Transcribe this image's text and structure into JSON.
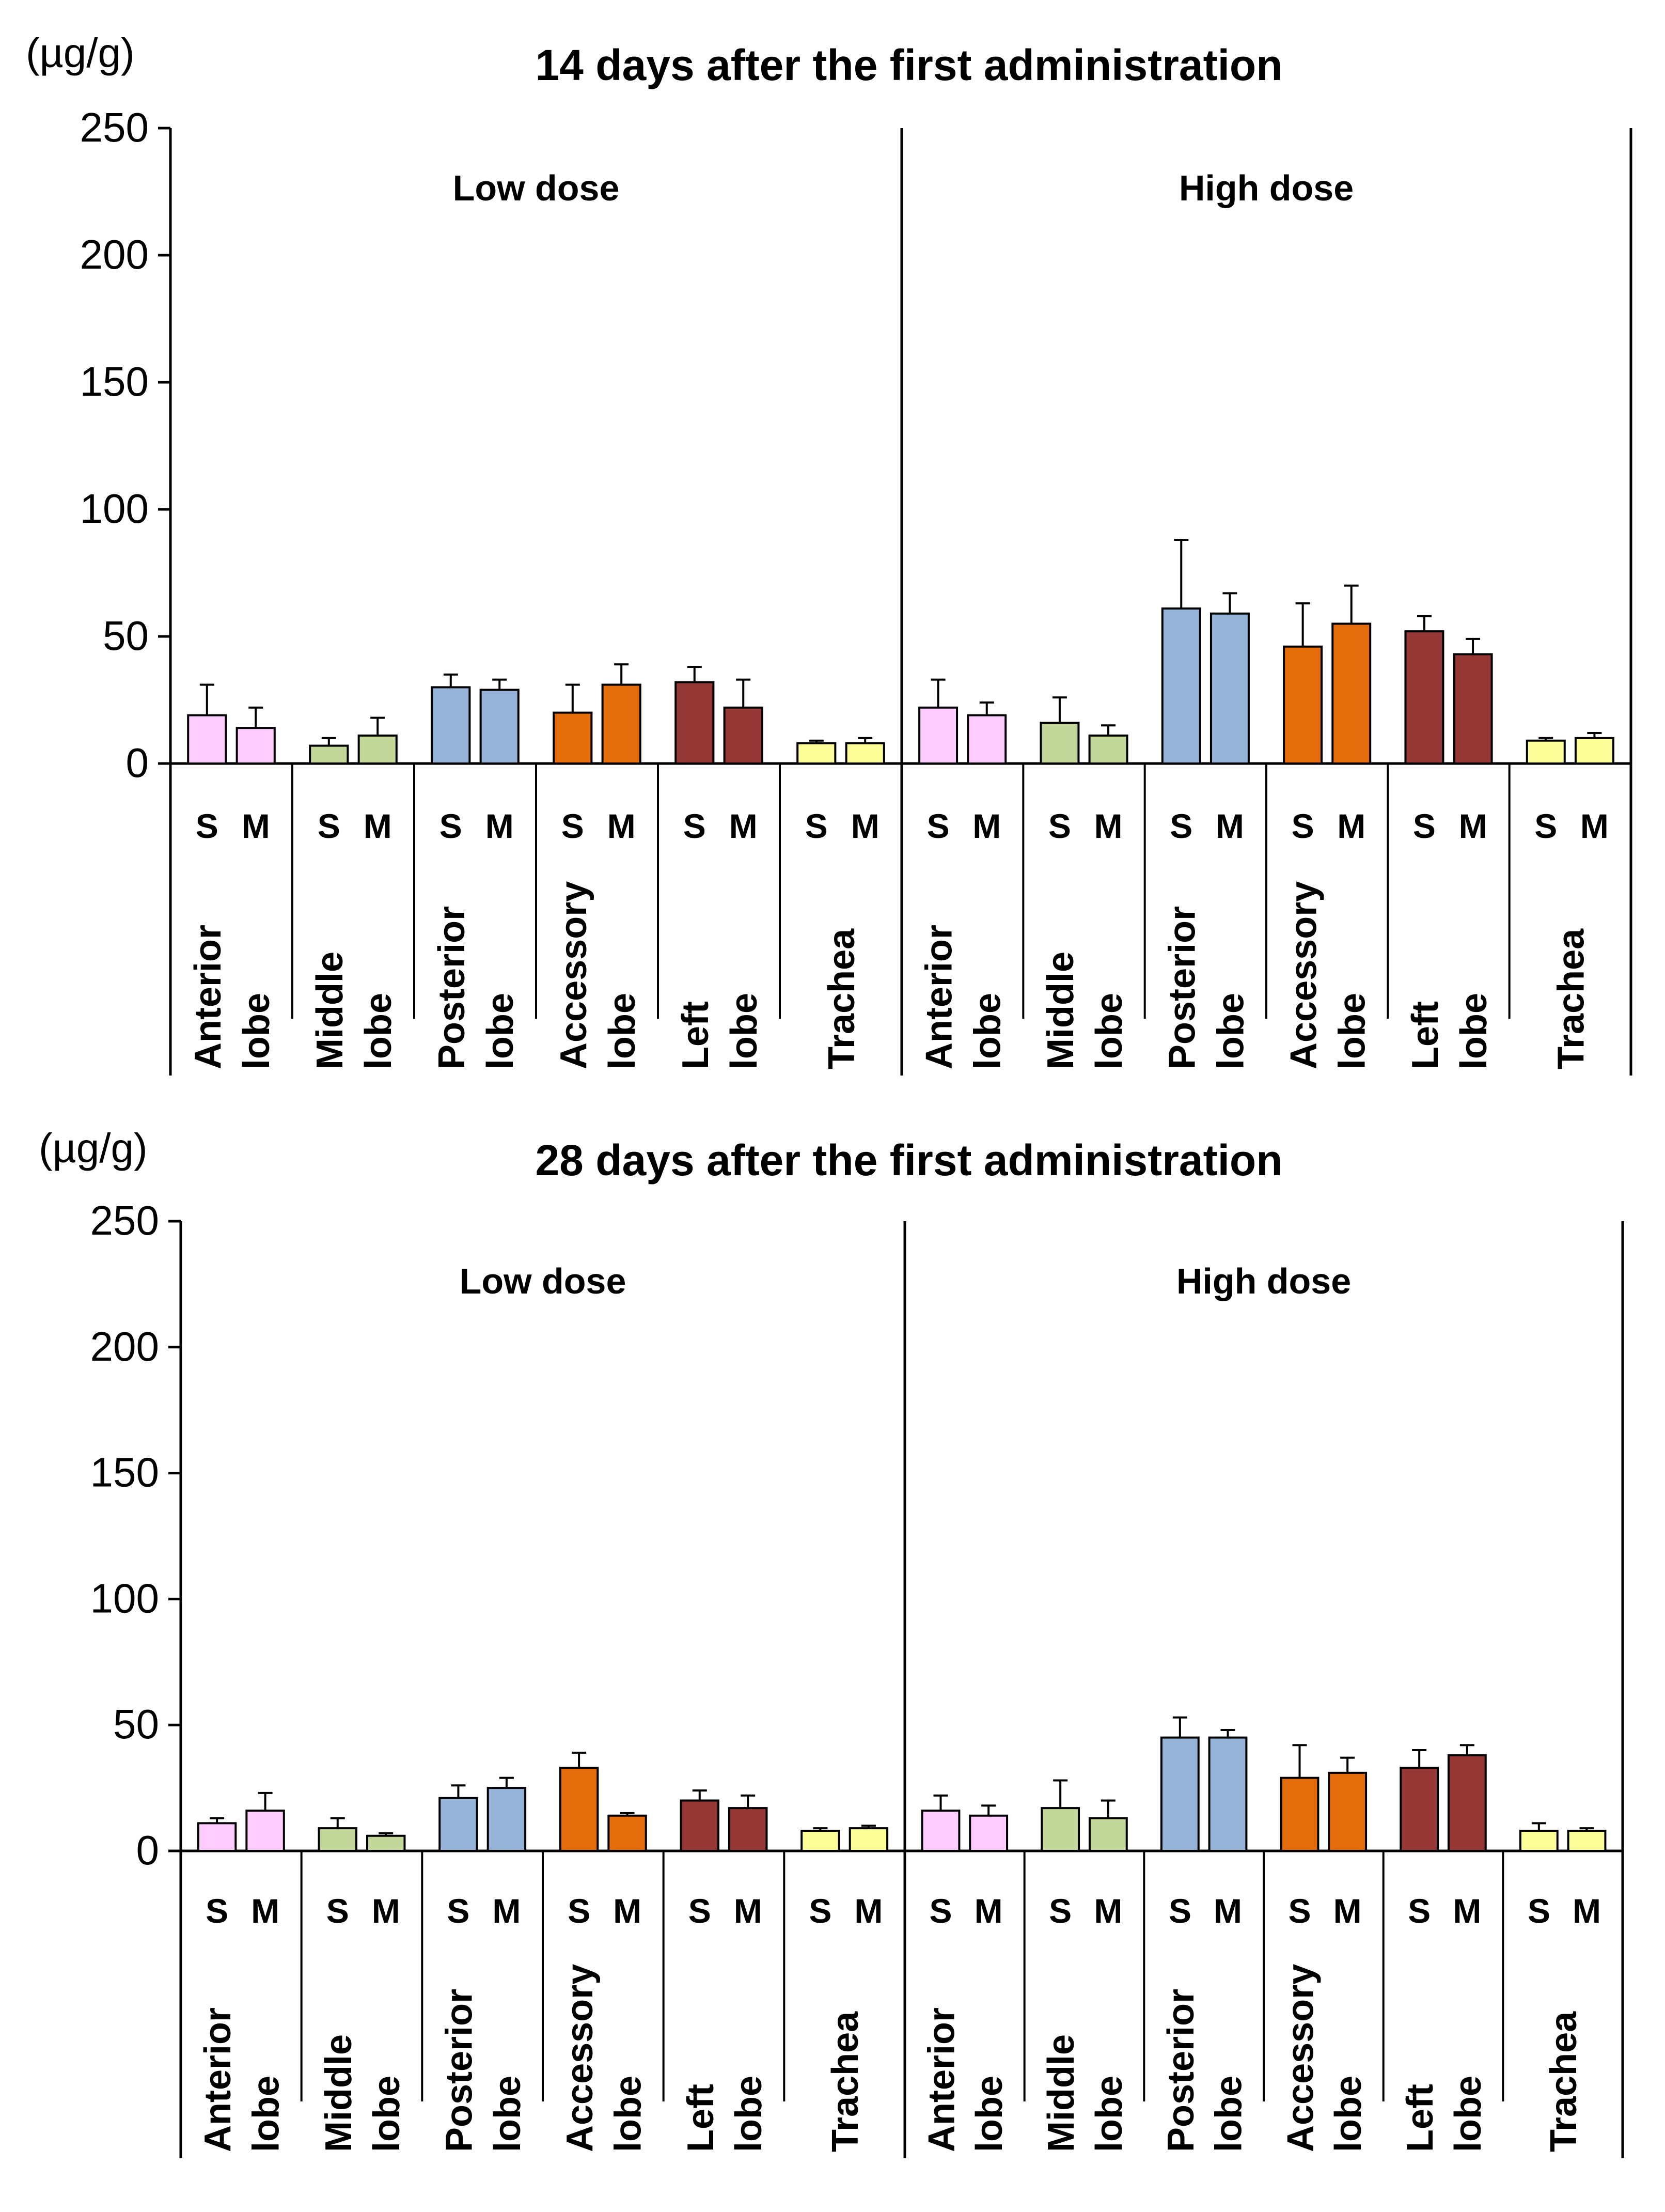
{
  "chart_data": [
    {
      "type": "bar",
      "title": "14 days after the first administration",
      "ylabel": "(µg/g)",
      "ylim": [
        0,
        250
      ],
      "yticks": [
        0,
        50,
        100,
        150,
        200,
        250
      ],
      "groups": [
        "Low dose",
        "High dose"
      ],
      "categories": [
        {
          "lines": [
            "Anterior",
            "lobe"
          ],
          "color": "#FFCCFF"
        },
        {
          "lines": [
            "Middle",
            "lobe"
          ],
          "color": "#C4D79B"
        },
        {
          "lines": [
            "Posterior",
            "lobe"
          ],
          "color": "#95B3D7"
        },
        {
          "lines": [
            "Accessory",
            "lobe"
          ],
          "color": "#E46C0A"
        },
        {
          "lines": [
            "Left",
            "lobe"
          ],
          "color": "#953735"
        },
        {
          "lines": [
            "Trachea"
          ],
          "color": "#FFFF99"
        }
      ],
      "bar_labels": [
        "S",
        "M"
      ],
      "series": [
        {
          "name": "Low dose",
          "values": [
            [
              19,
              14
            ],
            [
              7,
              11
            ],
            [
              30,
              29
            ],
            [
              20,
              31
            ],
            [
              32,
              22
            ],
            [
              8,
              8
            ]
          ],
          "errors": [
            [
              12,
              8
            ],
            [
              3,
              7
            ],
            [
              5,
              4
            ],
            [
              11,
              8
            ],
            [
              6,
              11
            ],
            [
              1,
              2
            ]
          ]
        },
        {
          "name": "High dose",
          "values": [
            [
              22,
              19
            ],
            [
              16,
              11
            ],
            [
              61,
              59
            ],
            [
              46,
              55
            ],
            [
              52,
              43
            ],
            [
              9,
              10
            ]
          ],
          "errors": [
            [
              11,
              5
            ],
            [
              10,
              4
            ],
            [
              27,
              8
            ],
            [
              17,
              15
            ],
            [
              6,
              6
            ],
            [
              1,
              2
            ]
          ]
        }
      ]
    },
    {
      "type": "bar",
      "title": "28 days after the first administration",
      "ylabel": "(µg/g)",
      "ylim": [
        0,
        250
      ],
      "yticks": [
        0,
        50,
        100,
        150,
        200,
        250
      ],
      "groups": [
        "Low dose",
        "High dose"
      ],
      "categories": [
        {
          "lines": [
            "Anterior",
            "lobe"
          ],
          "color": "#FFCCFF"
        },
        {
          "lines": [
            "Middle",
            "lobe"
          ],
          "color": "#C4D79B"
        },
        {
          "lines": [
            "Posterior",
            "lobe"
          ],
          "color": "#95B3D7"
        },
        {
          "lines": [
            "Accessory",
            "lobe"
          ],
          "color": "#E46C0A"
        },
        {
          "lines": [
            "Left",
            "lobe"
          ],
          "color": "#953735"
        },
        {
          "lines": [
            "Trachea"
          ],
          "color": "#FFFF99"
        }
      ],
      "bar_labels": [
        "S",
        "M"
      ],
      "series": [
        {
          "name": "Low dose",
          "values": [
            [
              11,
              16
            ],
            [
              9,
              6
            ],
            [
              21,
              25
            ],
            [
              33,
              14
            ],
            [
              20,
              17
            ],
            [
              8,
              9
            ]
          ],
          "errors": [
            [
              2,
              7
            ],
            [
              4,
              1
            ],
            [
              5,
              4
            ],
            [
              6,
              1
            ],
            [
              4,
              5
            ],
            [
              1,
              1
            ]
          ]
        },
        {
          "name": "High dose",
          "values": [
            [
              16,
              14
            ],
            [
              17,
              13
            ],
            [
              45,
              45
            ],
            [
              29,
              31
            ],
            [
              33,
              38
            ],
            [
              8,
              8
            ]
          ],
          "errors": [
            [
              6,
              4
            ],
            [
              11,
              7
            ],
            [
              8,
              3
            ],
            [
              13,
              6
            ],
            [
              7,
              4
            ],
            [
              3,
              1
            ]
          ]
        }
      ]
    }
  ]
}
